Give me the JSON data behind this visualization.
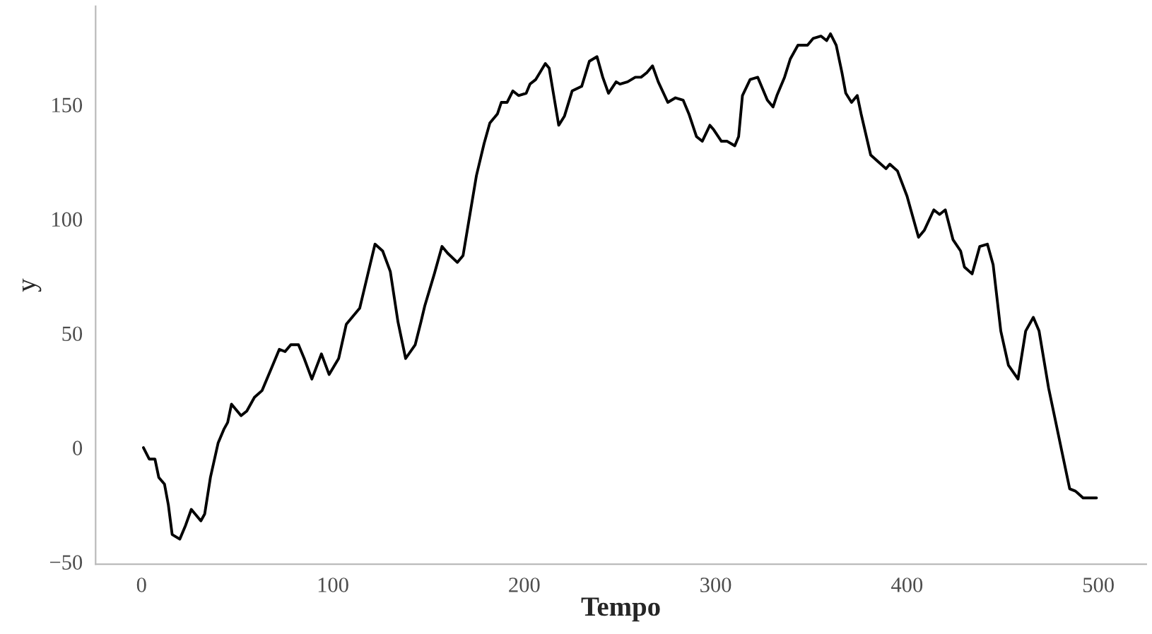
{
  "chart_data": {
    "type": "line",
    "xlabel": "Tempo",
    "ylabel": "y",
    "xlim": [
      -24,
      525
    ],
    "ylim": [
      -51,
      193
    ],
    "xticks": [
      0,
      100,
      200,
      300,
      400,
      500
    ],
    "yticks": [
      {
        "value": -50,
        "label": "−50"
      },
      0,
      50,
      100,
      150
    ],
    "grid": false,
    "marker": "none",
    "line_style": "solid",
    "series": [
      {
        "color": "#000000",
        "x": [
          1,
          4,
          7,
          9,
          12,
          14,
          16,
          20,
          23,
          26,
          27,
          31,
          33,
          36,
          40,
          43,
          45,
          47,
          52,
          55,
          59,
          63,
          68,
          72,
          75,
          78,
          82,
          85,
          89,
          94,
          98,
          103,
          107,
          110,
          114,
          118,
          122,
          126,
          130,
          134,
          138,
          143,
          146,
          148,
          153,
          157,
          160,
          165,
          168,
          171,
          175,
          179,
          182,
          186,
          188,
          191,
          194,
          197,
          201,
          203,
          206,
          211,
          213,
          216,
          218,
          221,
          225,
          230,
          234,
          238,
          241,
          244,
          248,
          250,
          254,
          258,
          261,
          264,
          267,
          270,
          275,
          279,
          283,
          286,
          290,
          293,
          297,
          299,
          303,
          306,
          310,
          312,
          314,
          318,
          322,
          327,
          330,
          332,
          336,
          339,
          343,
          348,
          351,
          355,
          358,
          360,
          363,
          366,
          368,
          371,
          374,
          376,
          381,
          385,
          389,
          391,
          395,
          400,
          402,
          406,
          409,
          414,
          417,
          420,
          424,
          428,
          430,
          434,
          438,
          442,
          445,
          449,
          453,
          458,
          462,
          466,
          469,
          474,
          477,
          481,
          485,
          488,
          492,
          496,
          499
        ],
        "values": [
          0,
          -5,
          -5,
          -13,
          -16,
          -25,
          -38,
          -40,
          -34,
          -27,
          -28,
          -32,
          -29,
          -13,
          2,
          8,
          11,
          19,
          14,
          16,
          22,
          25,
          35,
          43,
          42,
          45,
          45,
          39,
          30,
          41,
          32,
          39,
          54,
          57,
          61,
          75,
          89,
          86,
          77,
          55,
          39,
          45,
          55,
          62,
          76,
          88,
          85,
          81,
          84,
          99,
          119,
          133,
          142,
          146,
          151,
          151,
          156,
          154,
          155,
          159,
          161,
          168,
          166,
          151,
          141,
          145,
          156,
          158,
          169,
          171,
          162,
          155,
          160,
          159,
          160,
          162,
          162,
          164,
          167,
          160,
          151,
          153,
          152,
          146,
          136,
          134,
          141,
          139,
          134,
          134,
          132,
          136,
          154,
          161,
          162,
          152,
          149,
          154,
          162,
          170,
          176,
          176,
          179,
          180,
          178,
          181,
          176,
          164,
          155,
          151,
          154,
          146,
          128,
          125,
          122,
          124,
          121,
          110,
          104,
          92,
          95,
          104,
          102,
          104,
          91,
          86,
          79,
          76,
          88,
          89,
          80,
          51,
          36,
          30,
          51,
          57,
          51,
          26,
          14,
          -2,
          -18,
          -19,
          -22,
          -22,
          -22
        ]
      }
    ]
  }
}
